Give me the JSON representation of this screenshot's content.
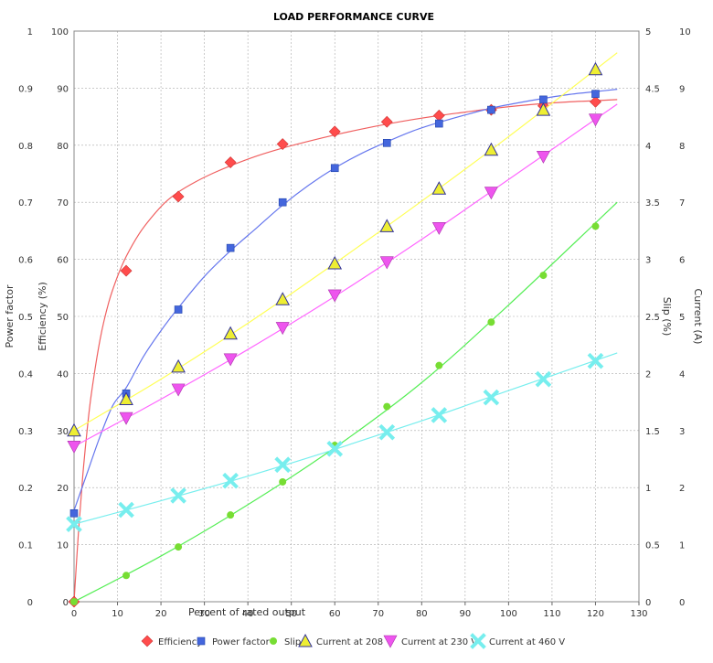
{
  "chart_data": {
    "type": "scatter",
    "title": "LOAD PERFORMANCE CURVE",
    "xlabel": "Percent of rated output",
    "xlim": [
      0,
      130
    ],
    "x_ticks": [
      "0",
      "10",
      "20",
      "30",
      "40",
      "50",
      "60",
      "70",
      "80",
      "90",
      "100",
      "110",
      "120",
      "130"
    ],
    "grid": true,
    "legend_position": "bottom",
    "axes": [
      {
        "id": "pf",
        "label": "Power factor",
        "side": "left",
        "range": [
          0,
          1
        ],
        "ticks": [
          "0",
          "0.1",
          "0.2",
          "0.3",
          "0.4",
          "0.5",
          "0.6",
          "0.7",
          "0.8",
          "0.9",
          "1"
        ]
      },
      {
        "id": "eff",
        "label": "Efficiency (%)",
        "side": "left",
        "range": [
          0,
          100
        ],
        "ticks": [
          "0",
          "10",
          "20",
          "30",
          "40",
          "50",
          "60",
          "70",
          "80",
          "90",
          "100"
        ]
      },
      {
        "id": "slip",
        "label": "Slip (%)",
        "side": "right",
        "range": [
          0,
          5
        ],
        "ticks": [
          "0",
          "0.5",
          "1",
          "1.5",
          "2",
          "2.5",
          "3",
          "3.5",
          "4",
          "4.5",
          "5"
        ]
      },
      {
        "id": "cur",
        "label": "Current (A)",
        "side": "right",
        "range": [
          0,
          10
        ],
        "ticks": [
          "0",
          "1",
          "2",
          "3",
          "4",
          "5",
          "6",
          "7",
          "8",
          "9",
          "10"
        ]
      }
    ],
    "series": [
      {
        "name": "Efficiency",
        "axis": "eff",
        "color": "#ff4c4c",
        "line_color": "#f06060",
        "marker": "diamond",
        "x": [
          0,
          12,
          24,
          36,
          48,
          60,
          72,
          84,
          96,
          108,
          120
        ],
        "y": [
          0,
          58,
          71,
          77,
          80.2,
          82.4,
          84.1,
          85.2,
          86.2,
          86.9,
          87.6
        ],
        "fit_x": [
          0,
          1,
          2,
          3,
          4,
          6,
          8,
          10,
          12,
          15,
          18,
          21,
          24,
          28,
          32,
          36,
          42,
          48,
          54,
          60,
          66,
          72,
          78,
          84,
          90,
          96,
          102,
          108,
          114,
          120,
          125
        ],
        "fit_y": [
          0,
          12,
          22,
          30,
          36.5,
          46,
          52.5,
          57,
          60.5,
          64.5,
          67.5,
          70,
          71.8,
          73.6,
          75.1,
          76.4,
          78.1,
          79.5,
          80.7,
          81.8,
          82.8,
          83.7,
          84.5,
          85.2,
          85.8,
          86.4,
          86.9,
          87.3,
          87.6,
          87.8,
          88
        ]
      },
      {
        "name": "Power factor",
        "axis": "pf",
        "color": "#4466dd",
        "line_color": "#6677ee",
        "marker": "square",
        "x": [
          0,
          12,
          24,
          36,
          48,
          60,
          72,
          84,
          96,
          108,
          120
        ],
        "y": [
          0.155,
          0.365,
          0.512,
          0.62,
          0.7,
          0.76,
          0.804,
          0.838,
          0.862,
          0.88,
          0.89
        ],
        "fit_x": [
          0,
          3,
          6,
          9,
          12,
          16,
          20,
          24,
          30,
          36,
          42,
          48,
          54,
          60,
          66,
          72,
          78,
          84,
          90,
          96,
          102,
          108,
          114,
          120,
          125
        ],
        "fit_y": [
          0.16,
          0.225,
          0.29,
          0.345,
          0.375,
          0.43,
          0.475,
          0.515,
          0.57,
          0.615,
          0.655,
          0.695,
          0.73,
          0.76,
          0.785,
          0.806,
          0.825,
          0.84,
          0.853,
          0.865,
          0.874,
          0.882,
          0.889,
          0.894,
          0.898
        ]
      },
      {
        "name": "Slip",
        "axis": "slip",
        "color": "#77dd33",
        "line_color": "#55ee55",
        "marker": "circle",
        "x": [
          0,
          12,
          24,
          36,
          48,
          60,
          72,
          84,
          96,
          108,
          120
        ],
        "y": [
          0,
          0.23,
          0.48,
          0.76,
          1.05,
          1.37,
          1.71,
          2.07,
          2.45,
          2.86,
          3.29
        ],
        "fit_x": [
          0,
          20,
          40,
          60,
          80,
          100,
          125
        ],
        "fit_y": [
          0,
          0.4,
          0.85,
          1.35,
          1.92,
          2.6,
          3.5
        ]
      },
      {
        "name": "Current at 208 V",
        "axis": "cur",
        "color": "#eeee33",
        "line_color": "#ffff55",
        "marker": "triangle-up",
        "x": [
          0,
          12,
          24,
          36,
          48,
          60,
          72,
          84,
          96,
          108,
          120
        ],
        "y": [
          3.0,
          3.55,
          4.12,
          4.7,
          5.3,
          5.93,
          6.58,
          7.24,
          7.92,
          8.62,
          9.33
        ],
        "fit_x": [
          0,
          20,
          40,
          60,
          80,
          100,
          125
        ],
        "fit_y": [
          3.0,
          3.9,
          4.88,
          5.93,
          7.02,
          8.15,
          9.62
        ]
      },
      {
        "name": "Current at 230 V",
        "axis": "cur",
        "color": "#ee55ee",
        "line_color": "#ff66ff",
        "marker": "triangle-down",
        "x": [
          0,
          12,
          24,
          36,
          48,
          60,
          72,
          84,
          96,
          108,
          120
        ],
        "y": [
          2.72,
          3.22,
          3.72,
          4.25,
          4.8,
          5.37,
          5.95,
          6.55,
          7.17,
          7.8,
          8.45
        ],
        "fit_x": [
          0,
          20,
          40,
          60,
          80,
          100,
          125
        ],
        "fit_y": [
          2.72,
          3.55,
          4.42,
          5.35,
          6.35,
          7.4,
          8.72
        ]
      },
      {
        "name": "Current at 460 V",
        "axis": "cur",
        "color": "#77eeee",
        "line_color": "#77eeee",
        "marker": "x",
        "x": [
          0,
          12,
          24,
          36,
          48,
          60,
          72,
          84,
          96,
          108,
          120
        ],
        "y": [
          1.36,
          1.61,
          1.86,
          2.12,
          2.4,
          2.68,
          2.97,
          3.27,
          3.58,
          3.9,
          4.22
        ],
        "fit_x": [
          0,
          20,
          40,
          60,
          80,
          100,
          125
        ],
        "fit_y": [
          1.36,
          1.77,
          2.2,
          2.67,
          3.17,
          3.7,
          4.36
        ]
      }
    ]
  }
}
